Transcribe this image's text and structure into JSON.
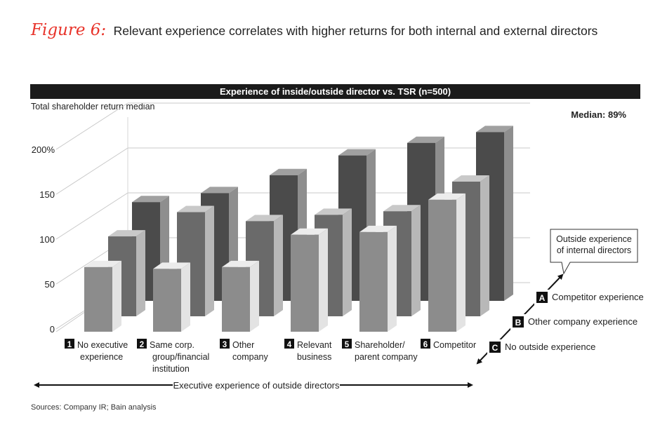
{
  "figure": {
    "label": "Figure 6:",
    "title": "Relevant experience correlates with higher returns for both internal and external directors"
  },
  "banner": "Experience of inside/outside director vs. TSR (n=500)",
  "median_label": "Median: 89%",
  "source": "Sources: Company IR; Bain analysis",
  "chart_data": {
    "type": "bar",
    "title": "Experience of inside/outside director vs. TSR (n=500)",
    "ylabel": "Total shareholder return median",
    "yticks": [
      "0",
      "50",
      "100",
      "150",
      "200%"
    ],
    "ylim": [
      0,
      200
    ],
    "categories": [
      {
        "num": "1",
        "lines": [
          "No executive",
          "experience"
        ]
      },
      {
        "num": "2",
        "lines": [
          "Same corp.",
          "group/financial",
          "institution"
        ]
      },
      {
        "num": "3",
        "lines": [
          "Other",
          "company"
        ]
      },
      {
        "num": "4",
        "lines": [
          "Relevant",
          "business"
        ]
      },
      {
        "num": "5",
        "lines": [
          "Shareholder/",
          "parent company"
        ]
      },
      {
        "num": "6",
        "lines": [
          "Competitor"
        ]
      }
    ],
    "series": [
      {
        "letter": "C",
        "name": "No outside experience",
        "values": [
          72,
          70,
          72,
          108,
          111,
          147
        ]
      },
      {
        "letter": "B",
        "name": "Other company experience",
        "values": [
          89,
          116,
          106,
          113,
          117,
          150
        ]
      },
      {
        "letter": "A",
        "name": "Competitor experience",
        "values": [
          110,
          120,
          140,
          162,
          176,
          188
        ]
      }
    ],
    "x_axis_label": "Executive experience of outside directors",
    "depth_axis_label": [
      "Outside experience",
      "of internal directors"
    ]
  }
}
